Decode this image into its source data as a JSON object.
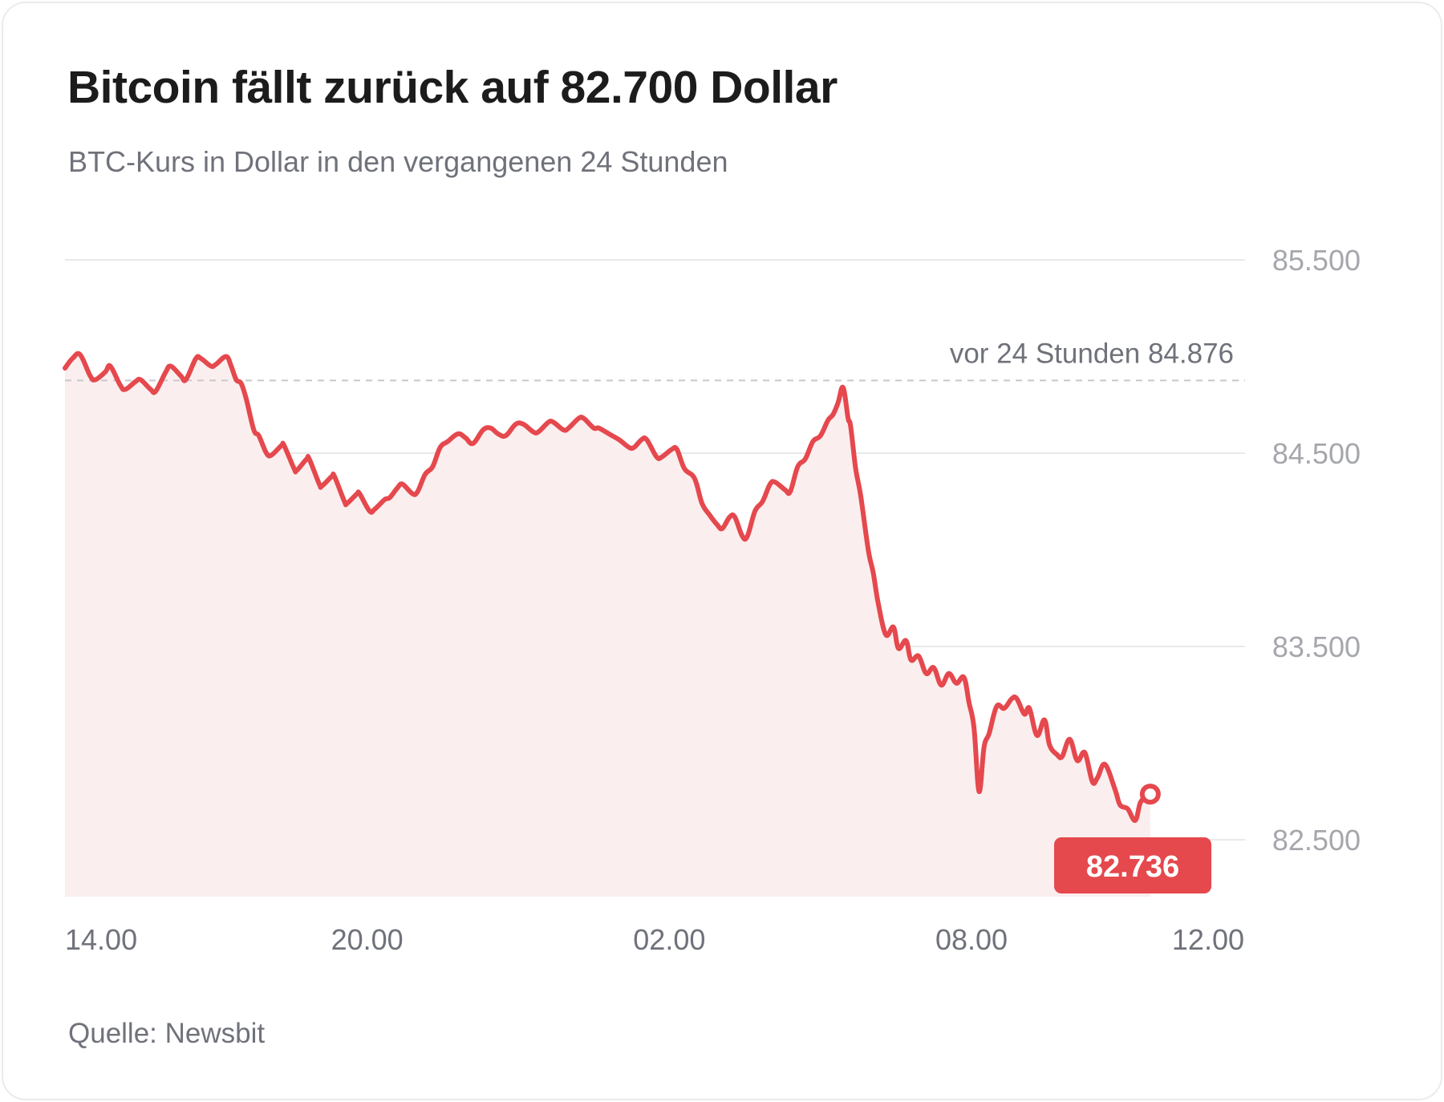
{
  "title": "Bitcoin fällt zurück auf 82.700 Dollar",
  "subtitle": "BTC-Kurs in Dollar in den vergangenen 24 Stunden",
  "source": "Quelle: Newsbit",
  "colors": {
    "line": "#e5484d",
    "area": "#fbeeee",
    "grid": "#e9e9ea",
    "reference": "#c8c8cc",
    "badge": "#e5484d"
  },
  "chart_data": {
    "type": "area",
    "x_unit": "hours",
    "x_range": [
      0,
      23.4
    ],
    "ylim": [
      82200,
      85500
    ],
    "y_ticks": [
      85500,
      84500,
      83500,
      82500
    ],
    "y_tick_labels": [
      "85.500",
      "84.500",
      "83.500",
      "82.500"
    ],
    "x_ticks": [
      {
        "x": 0.8,
        "label": "14.00"
      },
      {
        "x": 6,
        "label": "20.00"
      },
      {
        "x": 12,
        "label": "02.00"
      },
      {
        "x": 18,
        "label": "08.00"
      },
      {
        "x": 22.8,
        "label": "12.00"
      }
    ],
    "grid": true,
    "reference": {
      "value": 84876,
      "label": "vor 24 Stunden 84.876"
    },
    "last": {
      "value": 82736,
      "label": "82.736"
    },
    "points": [
      [
        0.0,
        84940
      ],
      [
        0.15,
        84990
      ],
      [
        0.3,
        85010
      ],
      [
        0.5,
        84900
      ],
      [
        0.6,
        84880
      ],
      [
        0.8,
        84920
      ],
      [
        0.9,
        84950
      ],
      [
        1.1,
        84850
      ],
      [
        1.2,
        84830
      ],
      [
        1.4,
        84870
      ],
      [
        1.5,
        84880
      ],
      [
        1.7,
        84830
      ],
      [
        1.8,
        84820
      ],
      [
        2.0,
        84920
      ],
      [
        2.1,
        84950
      ],
      [
        2.3,
        84900
      ],
      [
        2.4,
        84880
      ],
      [
        2.6,
        84990
      ],
      [
        2.7,
        84990
      ],
      [
        2.9,
        84950
      ],
      [
        3.0,
        84960
      ],
      [
        3.2,
        85000
      ],
      [
        3.3,
        84950
      ],
      [
        3.4,
        84880
      ],
      [
        3.5,
        84860
      ],
      [
        3.6,
        84780
      ],
      [
        3.75,
        84620
      ],
      [
        3.85,
        84590
      ],
      [
        4.0,
        84500
      ],
      [
        4.1,
        84490
      ],
      [
        4.3,
        84540
      ],
      [
        4.35,
        84540
      ],
      [
        4.55,
        84420
      ],
      [
        4.6,
        84410
      ],
      [
        4.8,
        84470
      ],
      [
        4.85,
        84470
      ],
      [
        5.05,
        84340
      ],
      [
        5.1,
        84330
      ],
      [
        5.3,
        84380
      ],
      [
        5.35,
        84380
      ],
      [
        5.55,
        84250
      ],
      [
        5.6,
        84240
      ],
      [
        5.8,
        84290
      ],
      [
        5.85,
        84290
      ],
      [
        6.05,
        84200
      ],
      [
        6.15,
        84210
      ],
      [
        6.35,
        84260
      ],
      [
        6.45,
        84270
      ],
      [
        6.6,
        84320
      ],
      [
        6.7,
        84340
      ],
      [
        6.9,
        84290
      ],
      [
        7.0,
        84300
      ],
      [
        7.15,
        84390
      ],
      [
        7.3,
        84430
      ],
      [
        7.45,
        84530
      ],
      [
        7.6,
        84560
      ],
      [
        7.8,
        84600
      ],
      [
        7.95,
        84580
      ],
      [
        8.1,
        84550
      ],
      [
        8.3,
        84620
      ],
      [
        8.45,
        84630
      ],
      [
        8.6,
        84600
      ],
      [
        8.75,
        84590
      ],
      [
        8.95,
        84650
      ],
      [
        9.1,
        84650
      ],
      [
        9.3,
        84610
      ],
      [
        9.4,
        84610
      ],
      [
        9.6,
        84660
      ],
      [
        9.7,
        84660
      ],
      [
        9.9,
        84620
      ],
      [
        10.0,
        84630
      ],
      [
        10.2,
        84680
      ],
      [
        10.3,
        84680
      ],
      [
        10.5,
        84630
      ],
      [
        10.6,
        84630
      ],
      [
        10.8,
        84600
      ],
      [
        11.0,
        84570
      ],
      [
        11.2,
        84530
      ],
      [
        11.3,
        84530
      ],
      [
        11.45,
        84570
      ],
      [
        11.55,
        84570
      ],
      [
        11.75,
        84480
      ],
      [
        11.85,
        84480
      ],
      [
        12.05,
        84520
      ],
      [
        12.15,
        84520
      ],
      [
        12.3,
        84420
      ],
      [
        12.5,
        84370
      ],
      [
        12.65,
        84240
      ],
      [
        12.8,
        84180
      ],
      [
        12.95,
        84130
      ],
      [
        13.05,
        84110
      ],
      [
        13.2,
        84170
      ],
      [
        13.3,
        84170
      ],
      [
        13.45,
        84070
      ],
      [
        13.55,
        84070
      ],
      [
        13.7,
        84200
      ],
      [
        13.85,
        84250
      ],
      [
        14.0,
        84340
      ],
      [
        14.1,
        84350
      ],
      [
        14.3,
        84310
      ],
      [
        14.4,
        84300
      ],
      [
        14.55,
        84430
      ],
      [
        14.7,
        84470
      ],
      [
        14.85,
        84560
      ],
      [
        15.0,
        84590
      ],
      [
        15.15,
        84670
      ],
      [
        15.25,
        84700
      ],
      [
        15.35,
        84760
      ],
      [
        15.45,
        84840
      ],
      [
        15.55,
        84680
      ],
      [
        15.6,
        84640
      ],
      [
        15.7,
        84420
      ],
      [
        15.8,
        84280
      ],
      [
        15.95,
        84000
      ],
      [
        16.05,
        83880
      ],
      [
        16.15,
        83720
      ],
      [
        16.3,
        83560
      ],
      [
        16.45,
        83600
      ],
      [
        16.55,
        83490
      ],
      [
        16.7,
        83530
      ],
      [
        16.8,
        83430
      ],
      [
        16.95,
        83450
      ],
      [
        17.1,
        83360
      ],
      [
        17.25,
        83390
      ],
      [
        17.4,
        83300
      ],
      [
        17.55,
        83360
      ],
      [
        17.7,
        83310
      ],
      [
        17.85,
        83340
      ],
      [
        17.95,
        83210
      ],
      [
        18.05,
        83080
      ],
      [
        18.15,
        82750
      ],
      [
        18.25,
        82980
      ],
      [
        18.35,
        83050
      ],
      [
        18.5,
        83190
      ],
      [
        18.65,
        83180
      ],
      [
        18.8,
        83230
      ],
      [
        18.9,
        83230
      ],
      [
        19.05,
        83150
      ],
      [
        19.15,
        83180
      ],
      [
        19.3,
        83040
      ],
      [
        19.45,
        83120
      ],
      [
        19.55,
        82990
      ],
      [
        19.7,
        82940
      ],
      [
        19.8,
        82930
      ],
      [
        19.95,
        83020
      ],
      [
        20.1,
        82910
      ],
      [
        20.25,
        82950
      ],
      [
        20.4,
        82800
      ],
      [
        20.5,
        82820
      ],
      [
        20.65,
        82890
      ],
      [
        20.85,
        82760
      ],
      [
        20.95,
        82680
      ],
      [
        21.1,
        82660
      ],
      [
        21.25,
        82600
      ],
      [
        21.35,
        82690
      ],
      [
        21.45,
        82720
      ],
      [
        21.55,
        82736
      ]
    ]
  }
}
